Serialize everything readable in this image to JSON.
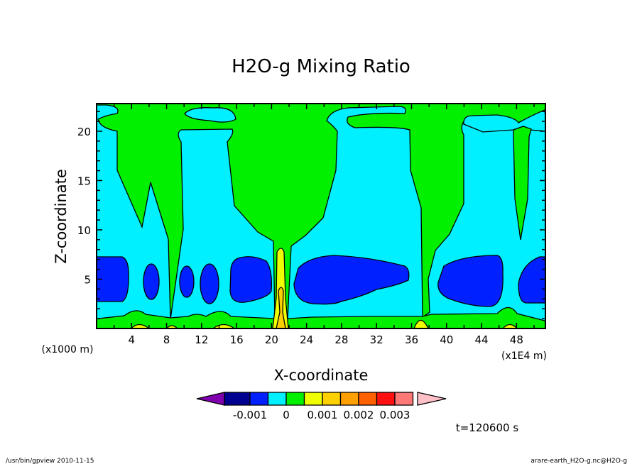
{
  "chart_data": {
    "type": "heatmap",
    "subtype": "filled-contour",
    "title": "H2O-g Mixing Ratio",
    "xlabel": "X-coordinate",
    "ylabel": "Z-coordinate",
    "x_unit_label": "(x1E4 m)",
    "y_unit_label": "(x1000 m)",
    "xlim": [
      0,
      51.3
    ],
    "ylim": [
      0,
      22.8
    ],
    "x_ticks": [
      4,
      8,
      12,
      16,
      20,
      24,
      28,
      32,
      36,
      40,
      44,
      48
    ],
    "x_tick_labels": [
      "4",
      "8",
      "12",
      "16",
      "20",
      "24",
      "28",
      "32",
      "36",
      "40",
      "44",
      "48"
    ],
    "y_ticks": [
      5,
      10,
      15,
      20
    ],
    "y_tick_labels": [
      "5",
      "10",
      "15",
      "20"
    ],
    "colorbar": {
      "levels": [
        -0.001,
        -0.0005,
        0,
        0.0005,
        0.001,
        0.0015,
        0.002,
        0.0025,
        0.003,
        0.0035
      ],
      "labels": [
        "-0.001",
        "0",
        "0.001",
        "0.002",
        "0.003"
      ],
      "label_values": [
        -0.001,
        0,
        0.001,
        0.002,
        0.003
      ],
      "colors": [
        "#8000b0",
        "#000090",
        "#0020ff",
        "#00f0ff",
        "#00f000",
        "#f0ff00",
        "#ffd000",
        "#ffa000",
        "#ff6000",
        "#ff1010",
        "#ff7878",
        "#ffc0c8"
      ]
    },
    "time_label": "t=120600 s"
  },
  "footer": {
    "left": "/usr/bin/gpview  2010-11-15",
    "right": "arare-earth_H2O-g.nc@H2O-g"
  }
}
